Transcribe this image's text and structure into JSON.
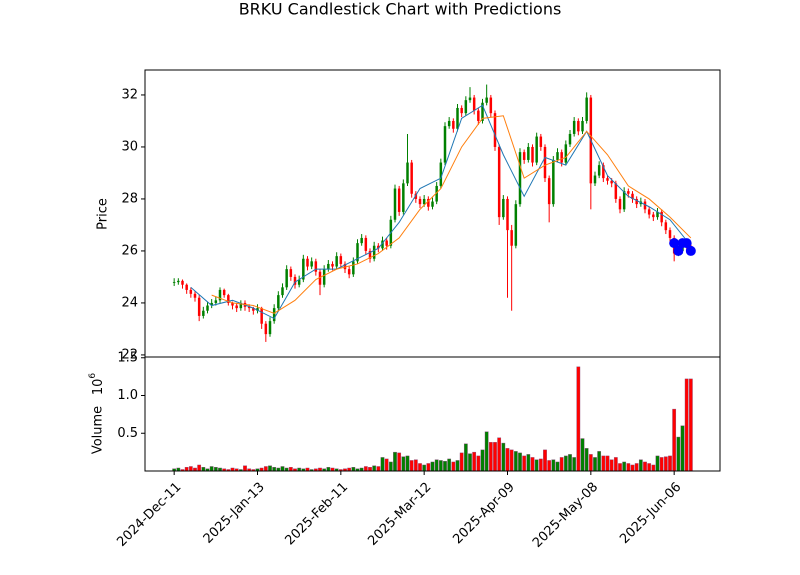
{
  "chart_data": [
    {
      "type": "candlestick",
      "title": "BRKU Candlestick Chart with Predictions",
      "ylabel": "Price",
      "xlim": [
        -7,
        131
      ],
      "ylim": [
        21.92,
        32.96
      ],
      "yticks": [
        22,
        24,
        26,
        28,
        30,
        32
      ],
      "up_color": "green",
      "down_color": "red",
      "candles": [
        [
          24.8,
          24.95,
          24.65,
          24.8
        ],
        [
          24.8,
          24.95,
          24.7,
          24.85
        ],
        [
          24.85,
          24.9,
          24.55,
          24.7
        ],
        [
          24.7,
          24.75,
          24.35,
          24.5
        ],
        [
          24.5,
          24.6,
          24.2,
          24.35
        ],
        [
          24.35,
          24.45,
          24.05,
          24.2
        ],
        [
          24.2,
          24.3,
          23.3,
          23.5
        ],
        [
          23.5,
          23.85,
          23.4,
          23.7
        ],
        [
          23.7,
          24.05,
          23.6,
          23.9
        ],
        [
          23.9,
          24.15,
          23.8,
          24.0
        ],
        [
          24.0,
          24.25,
          23.9,
          24.1
        ],
        [
          24.1,
          24.6,
          24.0,
          24.5
        ],
        [
          24.5,
          24.55,
          24.2,
          24.3
        ],
        [
          24.3,
          24.35,
          23.9,
          24.0
        ],
        [
          24.0,
          24.05,
          23.75,
          23.9
        ],
        [
          23.9,
          24.0,
          23.65,
          23.8
        ],
        [
          23.8,
          24.1,
          23.7,
          24.0
        ],
        [
          24.0,
          24.1,
          23.7,
          23.85
        ],
        [
          23.85,
          23.95,
          23.65,
          23.8
        ],
        [
          23.8,
          23.85,
          23.55,
          23.7
        ],
        [
          23.7,
          23.95,
          23.6,
          23.8
        ],
        [
          23.8,
          23.85,
          23.0,
          23.2
        ],
        [
          23.2,
          23.3,
          22.5,
          22.8
        ],
        [
          22.8,
          23.45,
          22.7,
          23.3
        ],
        [
          23.3,
          23.95,
          23.2,
          23.8
        ],
        [
          23.8,
          24.45,
          23.7,
          24.3
        ],
        [
          24.3,
          24.75,
          24.2,
          24.6
        ],
        [
          24.6,
          25.45,
          24.5,
          25.3
        ],
        [
          25.3,
          25.4,
          24.85,
          25.0
        ],
        [
          25.0,
          25.1,
          24.55,
          24.7
        ],
        [
          24.7,
          25.05,
          24.6,
          24.9
        ],
        [
          24.9,
          25.85,
          24.8,
          25.7
        ],
        [
          25.7,
          25.8,
          25.25,
          25.4
        ],
        [
          25.4,
          25.75,
          25.3,
          25.6
        ],
        [
          25.6,
          25.7,
          25.05,
          25.2
        ],
        [
          25.2,
          25.3,
          24.3,
          24.7
        ],
        [
          24.7,
          25.45,
          24.6,
          25.3
        ],
        [
          25.3,
          25.65,
          25.2,
          25.5
        ],
        [
          25.5,
          25.6,
          25.25,
          25.4
        ],
        [
          25.4,
          25.95,
          25.3,
          25.8
        ],
        [
          25.8,
          25.9,
          25.35,
          25.5
        ],
        [
          25.5,
          25.6,
          25.15,
          25.3
        ],
        [
          25.3,
          25.4,
          24.95,
          25.1
        ],
        [
          25.1,
          25.75,
          25.0,
          25.6
        ],
        [
          25.6,
          26.45,
          25.5,
          26.3
        ],
        [
          26.3,
          26.65,
          26.2,
          26.5
        ],
        [
          26.5,
          26.6,
          25.85,
          26.0
        ],
        [
          26.0,
          26.1,
          25.55,
          25.7
        ],
        [
          25.7,
          26.35,
          25.6,
          26.2
        ],
        [
          26.2,
          26.3,
          25.95,
          26.1
        ],
        [
          26.1,
          26.55,
          26.0,
          26.4
        ],
        [
          26.4,
          26.5,
          26.05,
          26.2
        ],
        [
          26.2,
          27.35,
          26.1,
          27.2
        ],
        [
          27.2,
          28.55,
          27.1,
          28.4
        ],
        [
          28.4,
          28.5,
          27.35,
          27.5
        ],
        [
          27.5,
          28.75,
          27.4,
          28.6
        ],
        [
          28.6,
          30.5,
          28.5,
          29.4
        ],
        [
          29.4,
          29.5,
          28.05,
          28.2
        ],
        [
          28.2,
          28.3,
          27.85,
          28.0
        ],
        [
          28.0,
          28.1,
          27.65,
          27.8
        ],
        [
          27.8,
          28.15,
          27.7,
          28.0
        ],
        [
          28.0,
          28.1,
          27.55,
          27.7
        ],
        [
          27.7,
          28.05,
          27.6,
          27.9
        ],
        [
          27.9,
          28.65,
          27.8,
          28.5
        ],
        [
          28.5,
          29.55,
          28.4,
          29.4
        ],
        [
          29.4,
          30.95,
          29.3,
          30.8
        ],
        [
          30.8,
          31.15,
          30.7,
          31.0
        ],
        [
          31.0,
          31.1,
          30.55,
          30.7
        ],
        [
          30.7,
          31.65,
          30.6,
          31.5
        ],
        [
          31.5,
          31.6,
          31.15,
          31.3
        ],
        [
          31.3,
          31.95,
          31.2,
          31.8
        ],
        [
          31.8,
          32.3,
          31.7,
          31.9
        ],
        [
          31.9,
          32.0,
          31.25,
          31.4
        ],
        [
          31.4,
          31.5,
          30.85,
          31.0
        ],
        [
          31.0,
          31.85,
          30.9,
          31.7
        ],
        [
          31.7,
          32.4,
          31.6,
          31.9
        ],
        [
          31.9,
          32.0,
          31.15,
          31.3
        ],
        [
          31.3,
          31.4,
          29.85,
          30.0
        ],
        [
          30.0,
          30.1,
          27.0,
          27.3
        ],
        [
          27.3,
          28.15,
          27.2,
          28.0
        ],
        [
          28.0,
          28.1,
          24.2,
          26.8
        ],
        [
          26.8,
          27.0,
          23.7,
          26.2
        ],
        [
          26.2,
          27.95,
          26.1,
          27.8
        ],
        [
          27.8,
          29.95,
          27.7,
          29.8
        ],
        [
          29.8,
          29.9,
          29.35,
          29.5
        ],
        [
          29.5,
          30.15,
          29.4,
          30.0
        ],
        [
          30.0,
          30.1,
          29.25,
          29.4
        ],
        [
          29.4,
          30.55,
          29.3,
          30.4
        ],
        [
          30.4,
          30.5,
          29.85,
          30.0
        ],
        [
          30.0,
          30.1,
          28.65,
          28.8
        ],
        [
          28.8,
          28.9,
          27.1,
          27.8
        ],
        [
          27.8,
          29.65,
          27.7,
          29.5
        ],
        [
          29.5,
          29.95,
          29.4,
          29.8
        ],
        [
          29.8,
          29.9,
          29.25,
          29.4
        ],
        [
          29.4,
          30.25,
          29.3,
          30.1
        ],
        [
          30.1,
          30.65,
          30.0,
          30.5
        ],
        [
          30.5,
          31.15,
          30.4,
          31.0
        ],
        [
          31.0,
          31.1,
          30.45,
          30.6
        ],
        [
          30.6,
          31.15,
          30.5,
          31.0
        ],
        [
          31.0,
          32.1,
          30.9,
          31.9
        ],
        [
          31.9,
          32.0,
          27.6,
          28.6
        ],
        [
          28.6,
          29.05,
          28.5,
          28.9
        ],
        [
          28.9,
          29.45,
          28.8,
          29.3
        ],
        [
          29.3,
          29.4,
          28.65,
          28.8
        ],
        [
          28.8,
          28.9,
          28.55,
          28.7
        ],
        [
          28.7,
          28.8,
          28.45,
          28.6
        ],
        [
          28.6,
          28.7,
          27.85,
          28.0
        ],
        [
          28.0,
          28.1,
          27.45,
          27.6
        ],
        [
          27.6,
          28.45,
          27.5,
          28.3
        ],
        [
          28.3,
          28.4,
          28.05,
          28.2
        ],
        [
          28.2,
          28.3,
          27.85,
          28.0
        ],
        [
          28.0,
          28.1,
          27.65,
          27.8
        ],
        [
          27.8,
          28.05,
          27.7,
          27.9
        ],
        [
          27.9,
          28.0,
          27.45,
          27.6
        ],
        [
          27.6,
          27.7,
          27.25,
          27.4
        ],
        [
          27.4,
          27.5,
          27.15,
          27.3
        ],
        [
          27.3,
          27.65,
          27.2,
          27.5
        ],
        [
          27.5,
          27.6,
          26.95,
          27.1
        ],
        [
          27.1,
          27.2,
          26.65,
          26.8
        ],
        [
          26.8,
          26.9,
          26.35,
          26.5
        ],
        [
          26.5,
          26.6,
          25.6,
          25.9
        ],
        [
          25.9,
          26.15,
          25.8,
          26.0
        ],
        [
          26.0,
          26.45,
          25.9,
          26.3
        ],
        [
          26.3,
          26.4,
          26.05,
          26.2
        ],
        [
          26.2,
          26.3,
          25.85,
          26.0
        ]
      ],
      "lines": [
        {
          "color": "#1f77b4",
          "x": [
            4,
            9,
            14,
            19,
            24,
            29,
            34,
            39,
            44,
            49,
            54,
            59,
            64,
            69,
            74,
            79,
            84,
            89,
            94,
            99,
            104,
            109,
            114,
            119,
            124
          ],
          "values": [
            24.6,
            23.9,
            24.1,
            23.8,
            23.4,
            24.8,
            25.3,
            25.3,
            25.7,
            26.1,
            27.1,
            28.4,
            28.8,
            31.1,
            31.6,
            29.7,
            28.1,
            29.6,
            29.3,
            30.6,
            28.9,
            28.1,
            27.7,
            27.2,
            26.2
          ]
        },
        {
          "color": "#ff7f0e",
          "x": [
            9,
            14,
            19,
            24,
            29,
            34,
            39,
            44,
            49,
            54,
            59,
            64,
            69,
            74,
            79,
            84,
            89,
            94,
            99,
            104,
            109,
            114,
            119,
            124
          ],
          "values": [
            24.3,
            24.0,
            23.9,
            23.6,
            24.1,
            24.9,
            25.3,
            25.5,
            25.9,
            26.5,
            27.6,
            28.4,
            30.0,
            31.1,
            31.2,
            28.8,
            29.3,
            29.6,
            30.6,
            29.7,
            28.5,
            28.0,
            27.3,
            26.5
          ]
        }
      ],
      "predictions": {
        "color": "blue",
        "x": [
          120,
          121,
          122,
          123,
          124
        ],
        "values": [
          26.3,
          26.0,
          26.3,
          26.3,
          26.0
        ]
      }
    },
    {
      "type": "volume",
      "ylabel": "Volume",
      "offset_text": {
        "base": "10",
        "exponent": "6"
      },
      "xlim": [
        -7,
        131
      ],
      "ylim": [
        0,
        1.51
      ],
      "yticks": [
        0.5,
        {
          "value": 1,
          "label": "1.0"
        },
        1.5
      ],
      "xticks": [
        {
          "value": 0,
          "label": "2024-Dec-11"
        },
        {
          "value": 20,
          "label": "2025-Jan-13"
        },
        {
          "value": 40,
          "label": "2025-Feb-11"
        },
        {
          "value": 60,
          "label": "2025-Mar-12"
        },
        {
          "value": 80,
          "label": "2025-Apr-09"
        },
        {
          "value": 100,
          "label": "2025-May-08"
        },
        {
          "value": 120,
          "label": "2025-Jun-06"
        }
      ],
      "values": [
        0.03,
        0.04,
        0.02,
        0.05,
        0.06,
        0.04,
        0.08,
        0.05,
        0.03,
        0.06,
        0.05,
        0.04,
        0.03,
        0.02,
        0.04,
        0.03,
        0.02,
        0.07,
        0.03,
        0.02,
        0.03,
        0.04,
        0.06,
        0.07,
        0.05,
        0.04,
        0.06,
        0.04,
        0.05,
        0.03,
        0.04,
        0.03,
        0.04,
        0.02,
        0.03,
        0.04,
        0.03,
        0.05,
        0.04,
        0.03,
        0.02,
        0.03,
        0.04,
        0.05,
        0.03,
        0.04,
        0.06,
        0.05,
        0.07,
        0.06,
        0.18,
        0.16,
        0.12,
        0.25,
        0.24,
        0.19,
        0.2,
        0.14,
        0.15,
        0.1,
        0.08,
        0.1,
        0.12,
        0.15,
        0.14,
        0.13,
        0.16,
        0.12,
        0.14,
        0.24,
        0.36,
        0.23,
        0.25,
        0.2,
        0.28,
        0.52,
        0.38,
        0.38,
        0.44,
        0.37,
        0.3,
        0.28,
        0.26,
        0.24,
        0.2,
        0.22,
        0.18,
        0.15,
        0.16,
        0.28,
        0.14,
        0.15,
        0.12,
        0.18,
        0.2,
        0.22,
        0.18,
        1.38,
        0.43,
        0.3,
        0.22,
        0.18,
        0.26,
        0.2,
        0.2,
        0.15,
        0.18,
        0.1,
        0.12,
        0.1,
        0.08,
        0.1,
        0.15,
        0.12,
        0.1,
        0.08,
        0.2,
        0.18,
        0.19,
        0.2,
        0.82,
        0.45,
        0.6,
        1.22,
        1.22
      ]
    }
  ]
}
